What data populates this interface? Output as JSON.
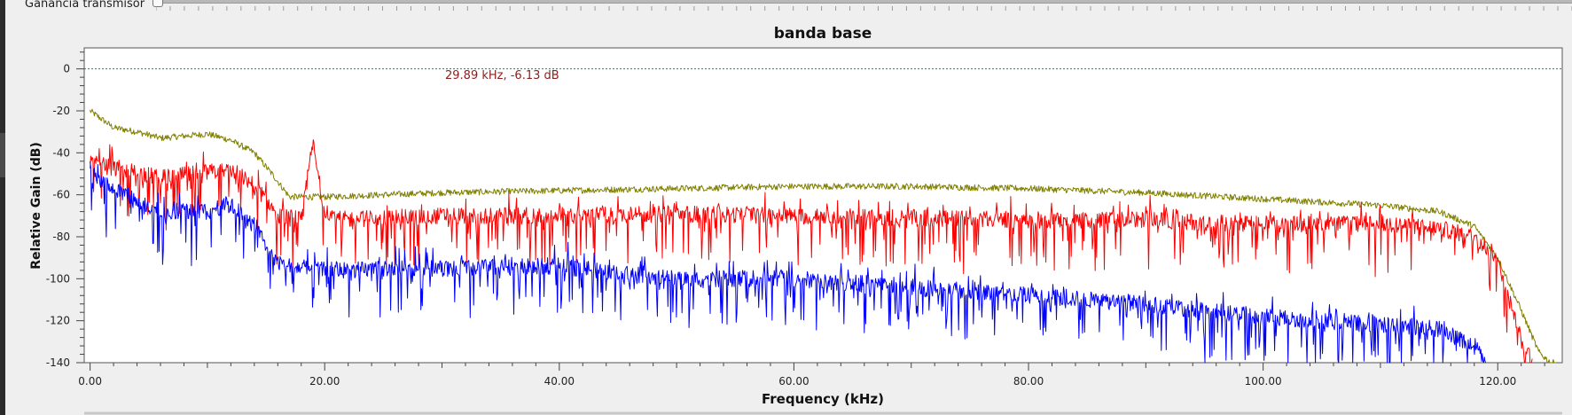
{
  "transmitter": {
    "gain_label": "Ganancia transmisor",
    "gain_slider": 0.0
  },
  "plot": {
    "title": "banda base",
    "marker_readout": "29.89 kHz, -6.13 dB",
    "xlabel": "Frequency (kHz)",
    "ylabel": "Relative Gain (dB)"
  },
  "chart_data": {
    "type": "line",
    "title": "banda base",
    "xlabel": "Frequency (kHz)",
    "ylabel": "Relative Gain (dB)",
    "xlim": [
      -0.5,
      125.5
    ],
    "ylim": [
      -140,
      10
    ],
    "x_ticks": [
      "0.00",
      "20.00",
      "40.00",
      "60.00",
      "80.00",
      "100.00",
      "120.00"
    ],
    "y_ticks": [
      "0",
      "-20",
      "-40",
      "-60",
      "-80",
      "-100",
      "-120",
      "-140"
    ],
    "reference_line": {
      "y": 0,
      "color": "#008b8b",
      "style": "dotted"
    },
    "series": [
      {
        "color": "#808000",
        "x": [
          0,
          2,
          4,
          6,
          8,
          10,
          12,
          14,
          15.5,
          17,
          20,
          30,
          40,
          50,
          60,
          70,
          80,
          90,
          100,
          110,
          115,
          118,
          120,
          122,
          123.5,
          124.5,
          125
        ],
        "y": [
          -20,
          -28,
          -30,
          -33,
          -32,
          -31,
          -34,
          -40,
          -50,
          -61,
          -61,
          -59,
          -58,
          -57,
          -56,
          -56,
          -57,
          -59,
          -62,
          -65,
          -68,
          -75,
          -90,
          -115,
          -135,
          -140,
          -140
        ]
      },
      {
        "color": "#ff0000",
        "x": [
          0,
          3,
          6,
          9,
          12,
          14,
          16,
          18,
          19,
          20,
          30,
          40,
          50,
          60,
          70,
          80,
          90,
          100,
          110,
          115,
          118,
          120,
          121,
          122,
          123
        ],
        "y": [
          -45,
          -48,
          -52,
          -50,
          -48,
          -55,
          -70,
          -72,
          -35,
          -72,
          -70,
          -70,
          -69,
          -70,
          -71,
          -72,
          -72,
          -74,
          -74,
          -76,
          -80,
          -90,
          -110,
          -130,
          -140
        ]
      },
      {
        "color": "#0000ff",
        "x": [
          0,
          3,
          6,
          9,
          12,
          14,
          16,
          18,
          20,
          30,
          40,
          50,
          60,
          70,
          80,
          90,
          100,
          110,
          115,
          118,
          119
        ],
        "y": [
          -50,
          -60,
          -70,
          -68,
          -65,
          -75,
          -92,
          -95,
          -96,
          -95,
          -94,
          -100,
          -100,
          -104,
          -108,
          -112,
          -118,
          -122,
          -124,
          -132,
          -140
        ]
      }
    ],
    "legend": "none"
  }
}
